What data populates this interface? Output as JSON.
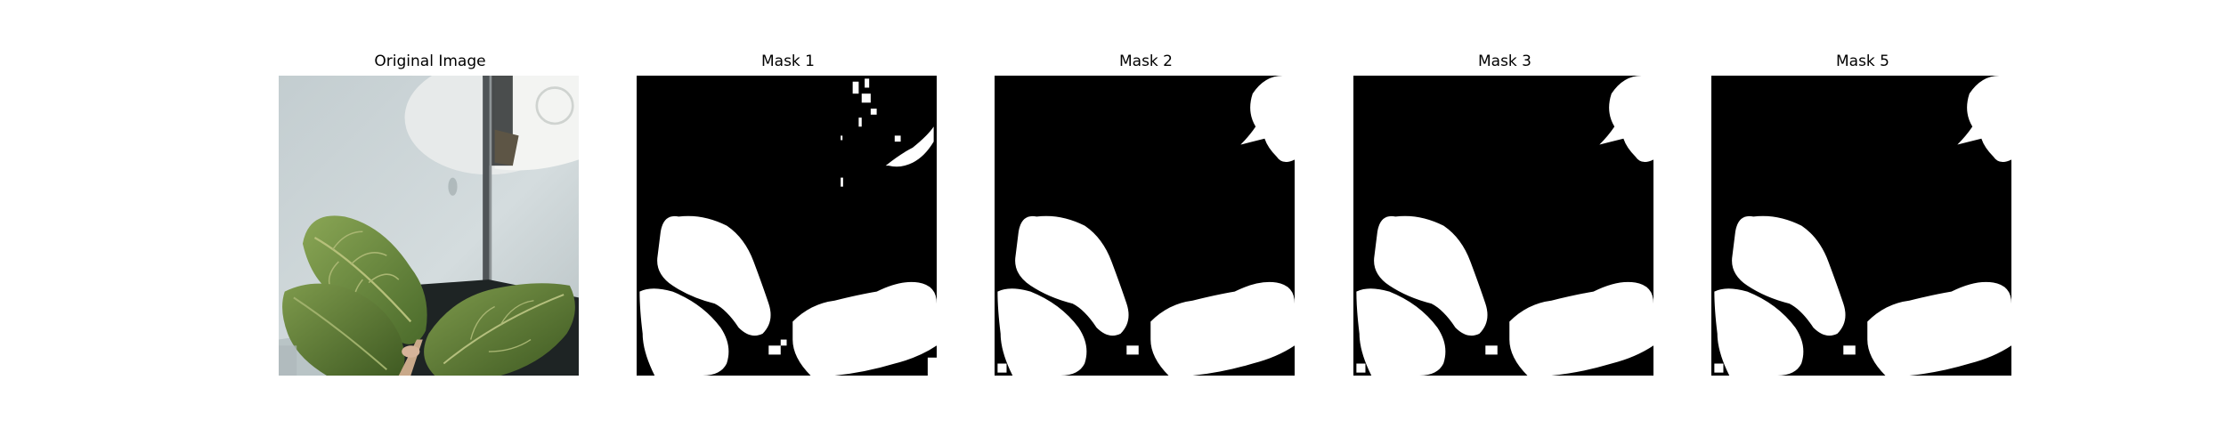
{
  "figure": {
    "panels": [
      {
        "title": "Original Image",
        "kind": "photo"
      },
      {
        "title": "Mask 1",
        "kind": "mask"
      },
      {
        "title": "Mask 2",
        "kind": "mask"
      },
      {
        "title": "Mask 3",
        "kind": "mask"
      },
      {
        "title": "Mask 5",
        "kind": "mask"
      }
    ]
  },
  "colors": {
    "mask_foreground": "#ffffff",
    "mask_background": "#000000",
    "wall": "#c8d1d3",
    "leaf_dark": "#3f5a22",
    "leaf_light": "#7e9a4c"
  }
}
